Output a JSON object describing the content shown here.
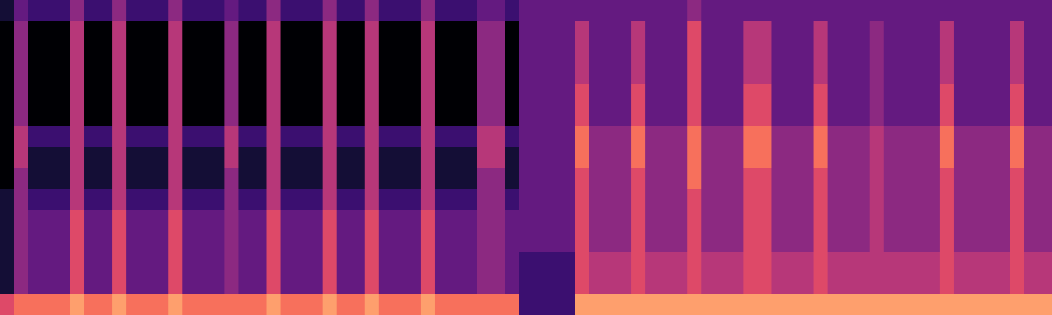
{
  "chart_data": {
    "type": "heatmap",
    "tick_labels": false,
    "zlim": [
      0,
      10
    ],
    "cells": [
      [
        1,
        3,
        2,
        2,
        2,
        4,
        2,
        2,
        4,
        2,
        2,
        2,
        4,
        2,
        2,
        2,
        3,
        2,
        2,
        4,
        2,
        2,
        2,
        4,
        2,
        2,
        4,
        2,
        2,
        2,
        4,
        2,
        2,
        2,
        3,
        3,
        2,
        3,
        3,
        3,
        3,
        3,
        3,
        3,
        3,
        3,
        3,
        3,
        3,
        4,
        3,
        3,
        3,
        3,
        3,
        3,
        3,
        3,
        3,
        3,
        3,
        3,
        3,
        3,
        3,
        3,
        3,
        3,
        3,
        3,
        3,
        3,
        3,
        3,
        3
      ],
      [
        0,
        4,
        0,
        0,
        0,
        5,
        0,
        0,
        5,
        0,
        0,
        0,
        5,
        0,
        0,
        0,
        4,
        0,
        0,
        5,
        0,
        0,
        0,
        5,
        0,
        0,
        5,
        0,
        0,
        0,
        5,
        0,
        0,
        0,
        4,
        4,
        0,
        3,
        3,
        3,
        3,
        5,
        3,
        3,
        3,
        5,
        3,
        3,
        3,
        6,
        3,
        3,
        3,
        5,
        5,
        3,
        3,
        3,
        5,
        3,
        3,
        3,
        4,
        3,
        3,
        3,
        3,
        5,
        3,
        3,
        3,
        3,
        5,
        3,
        3
      ],
      [
        0,
        4,
        0,
        0,
        0,
        5,
        0,
        0,
        5,
        0,
        0,
        0,
        5,
        0,
        0,
        0,
        4,
        0,
        0,
        5,
        0,
        0,
        0,
        5,
        0,
        0,
        5,
        0,
        0,
        0,
        5,
        0,
        0,
        0,
        4,
        4,
        0,
        3,
        3,
        3,
        3,
        5,
        3,
        3,
        3,
        5,
        3,
        3,
        3,
        6,
        3,
        3,
        3,
        5,
        5,
        3,
        3,
        3,
        5,
        3,
        3,
        3,
        4,
        3,
        3,
        3,
        3,
        5,
        3,
        3,
        3,
        3,
        5,
        3,
        3
      ],
      [
        0,
        4,
        0,
        0,
        0,
        5,
        0,
        0,
        5,
        0,
        0,
        0,
        5,
        0,
        0,
        0,
        4,
        0,
        0,
        5,
        0,
        0,
        0,
        5,
        0,
        0,
        5,
        0,
        0,
        0,
        5,
        0,
        0,
        0,
        4,
        4,
        0,
        3,
        3,
        3,
        3,
        5,
        3,
        3,
        3,
        5,
        3,
        3,
        3,
        6,
        3,
        3,
        3,
        5,
        5,
        3,
        3,
        3,
        5,
        3,
        3,
        3,
        4,
        3,
        3,
        3,
        3,
        5,
        3,
        3,
        3,
        3,
        5,
        3,
        3
      ],
      [
        0,
        4,
        0,
        0,
        0,
        5,
        0,
        0,
        5,
        0,
        0,
        0,
        5,
        0,
        0,
        0,
        4,
        0,
        0,
        5,
        0,
        0,
        0,
        5,
        0,
        0,
        5,
        0,
        0,
        0,
        5,
        0,
        0,
        0,
        4,
        4,
        0,
        3,
        3,
        3,
        3,
        6,
        3,
        3,
        3,
        6,
        3,
        3,
        3,
        6,
        3,
        3,
        3,
        6,
        6,
        3,
        3,
        3,
        6,
        3,
        3,
        3,
        4,
        3,
        3,
        3,
        3,
        6,
        3,
        3,
        3,
        3,
        6,
        3,
        3
      ],
      [
        0,
        4,
        0,
        0,
        0,
        5,
        0,
        0,
        5,
        0,
        0,
        0,
        5,
        0,
        0,
        0,
        4,
        0,
        0,
        5,
        0,
        0,
        0,
        5,
        0,
        0,
        5,
        0,
        0,
        0,
        5,
        0,
        0,
        0,
        4,
        4,
        0,
        3,
        3,
        3,
        3,
        6,
        3,
        3,
        3,
        6,
        3,
        3,
        3,
        6,
        3,
        3,
        3,
        6,
        6,
        3,
        3,
        3,
        6,
        3,
        3,
        3,
        4,
        3,
        3,
        3,
        3,
        6,
        3,
        3,
        3,
        3,
        6,
        3,
        3
      ],
      [
        0,
        5,
        2,
        2,
        2,
        5,
        2,
        2,
        5,
        2,
        2,
        2,
        5,
        2,
        2,
        2,
        5,
        2,
        2,
        5,
        2,
        2,
        2,
        5,
        2,
        2,
        5,
        2,
        2,
        2,
        5,
        2,
        2,
        2,
        5,
        5,
        2,
        3,
        3,
        3,
        3,
        7,
        4,
        4,
        4,
        7,
        4,
        4,
        4,
        7,
        4,
        4,
        4,
        7,
        7,
        4,
        4,
        4,
        7,
        4,
        4,
        4,
        5,
        4,
        4,
        4,
        4,
        7,
        4,
        4,
        4,
        4,
        7,
        4,
        4
      ],
      [
        0,
        5,
        1,
        1,
        1,
        5,
        1,
        1,
        5,
        1,
        1,
        1,
        5,
        1,
        1,
        1,
        5,
        1,
        1,
        5,
        1,
        1,
        1,
        5,
        1,
        1,
        5,
        1,
        1,
        1,
        5,
        1,
        1,
        1,
        5,
        5,
        1,
        3,
        3,
        3,
        3,
        7,
        4,
        4,
        4,
        7,
        4,
        4,
        4,
        7,
        4,
        4,
        4,
        7,
        7,
        4,
        4,
        4,
        7,
        4,
        4,
        4,
        5,
        4,
        4,
        4,
        4,
        7,
        4,
        4,
        4,
        4,
        7,
        4,
        4
      ],
      [
        0,
        4,
        1,
        1,
        1,
        5,
        1,
        1,
        5,
        1,
        1,
        1,
        5,
        1,
        1,
        1,
        4,
        1,
        1,
        5,
        1,
        1,
        1,
        5,
        1,
        1,
        5,
        1,
        1,
        1,
        5,
        1,
        1,
        1,
        4,
        4,
        1,
        3,
        3,
        3,
        3,
        6,
        4,
        4,
        4,
        6,
        4,
        4,
        4,
        7,
        4,
        4,
        4,
        6,
        6,
        4,
        4,
        4,
        6,
        4,
        4,
        4,
        5,
        4,
        4,
        4,
        4,
        6,
        4,
        4,
        4,
        4,
        6,
        4,
        4
      ],
      [
        1,
        4,
        2,
        2,
        2,
        5,
        2,
        2,
        5,
        2,
        2,
        2,
        5,
        2,
        2,
        2,
        4,
        2,
        2,
        5,
        2,
        2,
        2,
        5,
        2,
        2,
        5,
        2,
        2,
        2,
        5,
        2,
        2,
        2,
        4,
        4,
        2,
        3,
        3,
        3,
        3,
        6,
        4,
        4,
        4,
        6,
        4,
        4,
        4,
        6,
        4,
        4,
        4,
        6,
        6,
        4,
        4,
        4,
        6,
        4,
        4,
        4,
        5,
        4,
        4,
        4,
        4,
        6,
        4,
        4,
        4,
        4,
        6,
        4,
        4
      ],
      [
        1,
        4,
        3,
        3,
        3,
        6,
        3,
        3,
        6,
        3,
        3,
        3,
        6,
        3,
        3,
        3,
        4,
        3,
        3,
        6,
        3,
        3,
        3,
        6,
        3,
        3,
        6,
        3,
        3,
        3,
        6,
        3,
        3,
        3,
        4,
        4,
        3,
        3,
        3,
        3,
        3,
        6,
        4,
        4,
        4,
        6,
        4,
        4,
        4,
        6,
        4,
        4,
        4,
        6,
        6,
        4,
        4,
        4,
        6,
        4,
        4,
        4,
        5,
        4,
        4,
        4,
        4,
        6,
        4,
        4,
        4,
        4,
        6,
        4,
        4
      ],
      [
        1,
        4,
        3,
        3,
        3,
        6,
        3,
        3,
        6,
        3,
        3,
        3,
        6,
        3,
        3,
        3,
        4,
        3,
        3,
        6,
        3,
        3,
        3,
        6,
        3,
        3,
        6,
        3,
        3,
        3,
        6,
        3,
        3,
        3,
        4,
        4,
        3,
        3,
        3,
        3,
        3,
        6,
        4,
        4,
        4,
        6,
        4,
        4,
        4,
        6,
        4,
        4,
        4,
        6,
        6,
        4,
        4,
        4,
        6,
        4,
        4,
        4,
        5,
        4,
        4,
        4,
        4,
        6,
        4,
        4,
        4,
        4,
        6,
        4,
        4
      ],
      [
        1,
        4,
        3,
        3,
        3,
        6,
        3,
        3,
        6,
        3,
        3,
        3,
        6,
        3,
        3,
        3,
        4,
        3,
        3,
        6,
        3,
        3,
        3,
        6,
        3,
        3,
        6,
        3,
        3,
        3,
        6,
        3,
        3,
        3,
        4,
        4,
        3,
        2,
        2,
        2,
        2,
        6,
        5,
        5,
        5,
        6,
        5,
        5,
        5,
        6,
        5,
        5,
        5,
        6,
        6,
        5,
        5,
        5,
        6,
        5,
        5,
        5,
        5,
        5,
        5,
        5,
        5,
        6,
        5,
        5,
        5,
        5,
        6,
        5,
        5
      ],
      [
        1,
        4,
        3,
        3,
        3,
        6,
        3,
        3,
        6,
        3,
        3,
        3,
        6,
        3,
        3,
        3,
        4,
        3,
        3,
        6,
        3,
        3,
        3,
        6,
        3,
        3,
        6,
        3,
        3,
        3,
        6,
        3,
        3,
        3,
        4,
        4,
        3,
        2,
        2,
        2,
        2,
        6,
        5,
        5,
        5,
        6,
        5,
        5,
        5,
        6,
        5,
        5,
        5,
        6,
        6,
        5,
        5,
        5,
        6,
        5,
        5,
        5,
        5,
        5,
        5,
        5,
        5,
        6,
        5,
        5,
        5,
        5,
        6,
        5,
        5
      ],
      [
        6,
        7,
        7,
        7,
        7,
        8,
        7,
        7,
        8,
        7,
        7,
        7,
        8,
        7,
        7,
        7,
        7,
        7,
        7,
        8,
        7,
        7,
        7,
        8,
        7,
        7,
        8,
        7,
        7,
        7,
        8,
        7,
        7,
        7,
        7,
        7,
        7,
        2,
        2,
        2,
        2,
        8,
        8,
        8,
        8,
        8,
        8,
        8,
        8,
        8,
        8,
        8,
        8,
        8,
        8,
        8,
        8,
        8,
        8,
        8,
        8,
        8,
        8,
        8,
        8,
        8,
        8,
        8,
        8,
        8,
        8,
        8,
        8,
        8,
        8
      ]
    ]
  }
}
